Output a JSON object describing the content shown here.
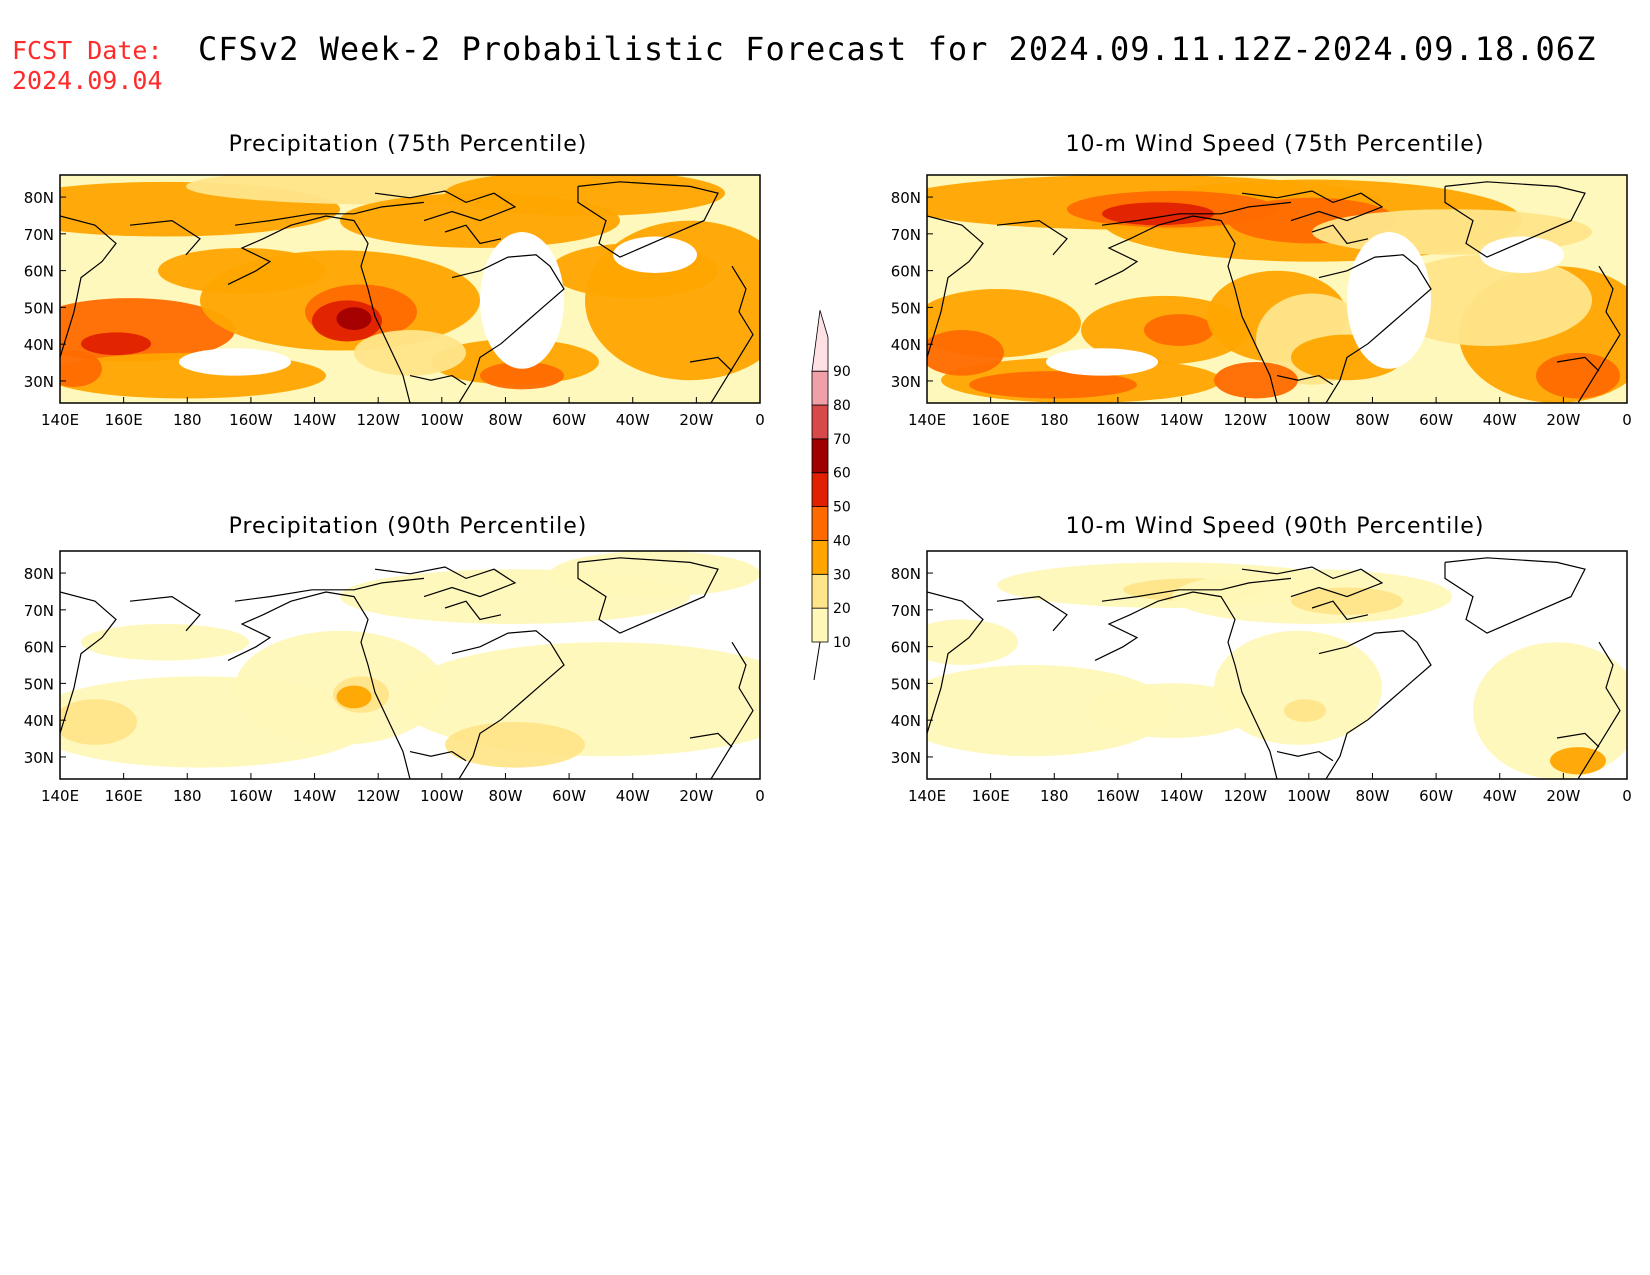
{
  "header": {
    "fcst_label": "FCST Date:",
    "fcst_date": "2024.09.04",
    "title": "CFSv2 Week-2 Probabilistic Forecast for 2024.09.11.12Z-2024.09.18.06Z"
  },
  "panels": [
    {
      "title": "Precipitation (75th Percentile)"
    },
    {
      "title": "10-m Wind Speed (75th Percentile)"
    },
    {
      "title": "Precipitation (90th Percentile)"
    },
    {
      "title": "10-m Wind Speed (90th Percentile)"
    }
  ],
  "axes": {
    "lat_labels": [
      "80N",
      "70N",
      "60N",
      "50N",
      "40N",
      "30N"
    ],
    "lon_labels": [
      "140E",
      "160E",
      "180",
      "160W",
      "140W",
      "120W",
      "100W",
      "80W",
      "60W",
      "40W",
      "20W",
      "0"
    ]
  },
  "colorbar": {
    "levels": [
      "10",
      "20",
      "30",
      "40",
      "50",
      "60",
      "70",
      "80",
      "90"
    ],
    "colors": [
      "#fff8b8",
      "#ffe58a",
      "#ffa500",
      "#ff6a00",
      "#e02000",
      "#a00000",
      "#d84a4a",
      "#f0a0a8",
      "#ffe0e4"
    ]
  }
}
